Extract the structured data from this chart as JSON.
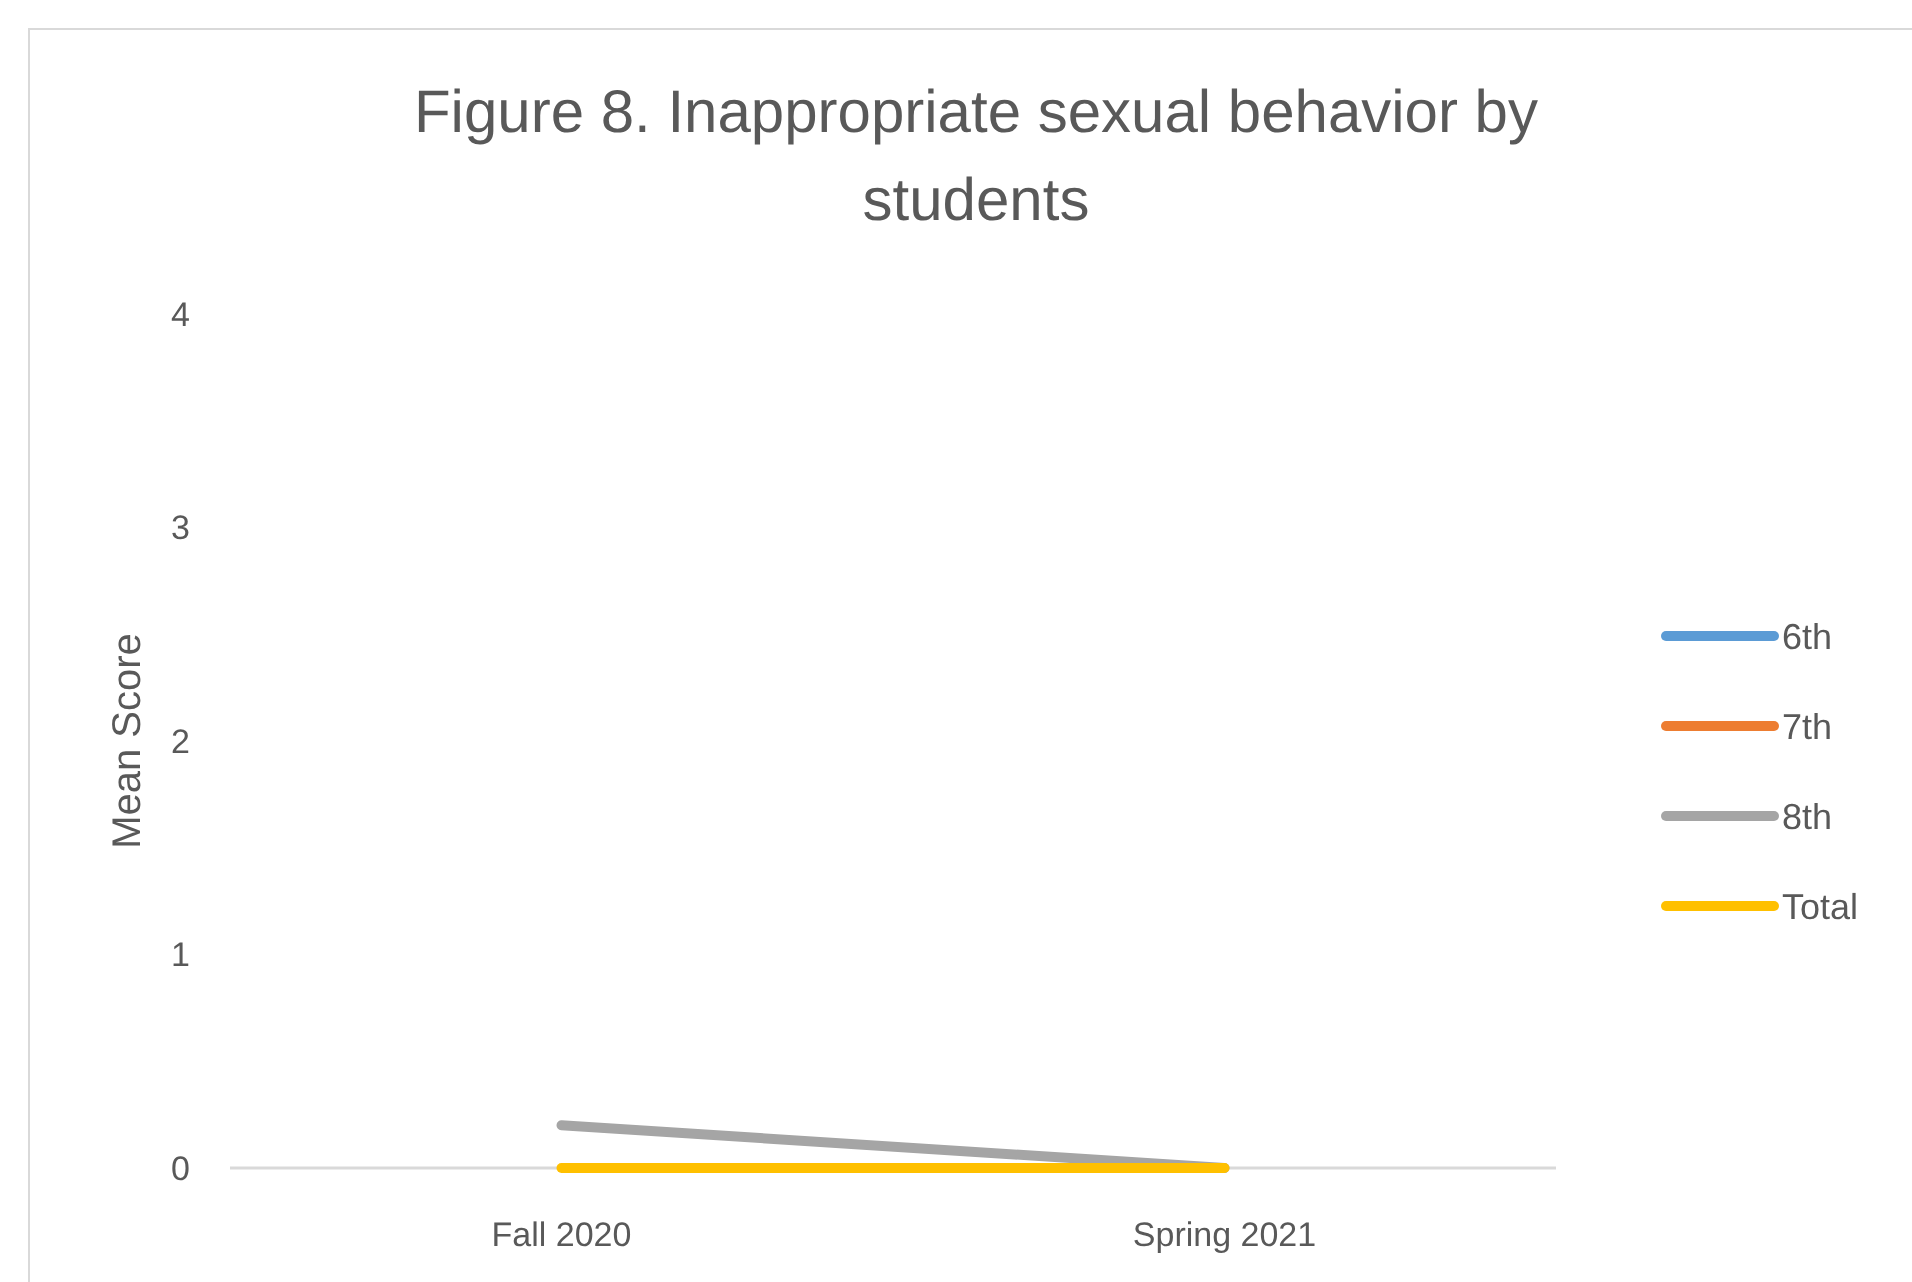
{
  "chart_data": {
    "type": "line",
    "title": "Figure 8. Inappropriate sexual behavior by students",
    "ylabel": "Mean Score",
    "categories": [
      "Fall 2020",
      "Spring 2021"
    ],
    "series": [
      {
        "name": "6th",
        "color": "#5b9bd5",
        "values": [
          null,
          null
        ]
      },
      {
        "name": "7th",
        "color": "#ed7d31",
        "values": [
          null,
          null
        ]
      },
      {
        "name": "8th",
        "color": "#a5a5a5",
        "values": [
          0.2,
          0
        ]
      },
      {
        "name": "Total",
        "color": "#ffc000",
        "values": [
          0,
          0
        ]
      }
    ],
    "ylim": [
      0,
      4
    ],
    "yticks": [
      0,
      1,
      2,
      3,
      4
    ],
    "legend": "right",
    "marker": "none",
    "line_style": "solid"
  }
}
